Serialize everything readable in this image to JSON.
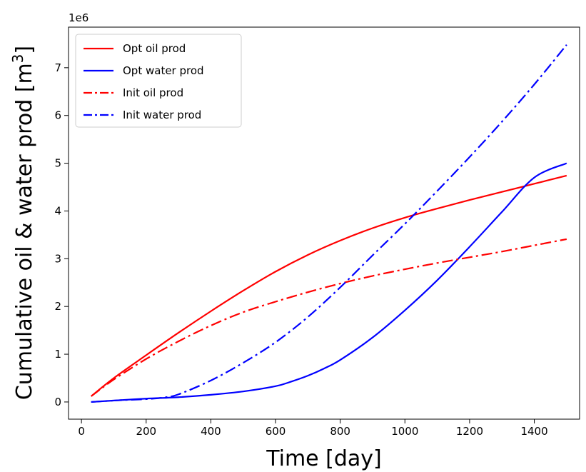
{
  "chart_data": {
    "type": "line",
    "xlabel": "Time [day]",
    "ylabel_main": "Cumulative oil & water prod [m",
    "ylabel_sup": "3",
    "ylabel_close": "]",
    "y_offset_label": "1e6",
    "xlim": [
      -40,
      1540
    ],
    "ylim": [
      -0.36,
      7.85
    ],
    "x_ticks": [
      0,
      200,
      400,
      600,
      800,
      1000,
      1200,
      1400
    ],
    "y_ticks": [
      0,
      1,
      2,
      3,
      4,
      5,
      6,
      7
    ],
    "grid": false,
    "legend_position": "upper-left",
    "series": [
      {
        "name": "Opt oil prod",
        "color": "#ff0000",
        "style": "solid",
        "x": [
          30,
          100,
          200,
          300,
          400,
          500,
          600,
          700,
          800,
          900,
          1000,
          1100,
          1200,
          1300,
          1400,
          1500
        ],
        "y": [
          0.12,
          0.5,
          0.98,
          1.45,
          1.9,
          2.33,
          2.73,
          3.08,
          3.38,
          3.64,
          3.86,
          4.05,
          4.23,
          4.4,
          4.57,
          4.74
        ]
      },
      {
        "name": "Opt water prod",
        "color": "#0000ff",
        "style": "solid",
        "x": [
          30,
          100,
          200,
          300,
          400,
          500,
          600,
          650,
          700,
          750,
          800,
          900,
          1000,
          1100,
          1200,
          1300,
          1400,
          1500
        ],
        "y": [
          0.0,
          0.03,
          0.07,
          0.1,
          0.15,
          0.22,
          0.33,
          0.43,
          0.55,
          0.7,
          0.88,
          1.35,
          1.92,
          2.55,
          3.25,
          3.98,
          4.7,
          5.0
        ]
      },
      {
        "name": "Init oil prod",
        "color": "#ff0000",
        "style": "dashdot",
        "x": [
          30,
          100,
          200,
          300,
          400,
          500,
          600,
          700,
          800,
          900,
          1000,
          1100,
          1200,
          1300,
          1400,
          1500
        ],
        "y": [
          0.12,
          0.47,
          0.9,
          1.27,
          1.6,
          1.88,
          2.1,
          2.3,
          2.48,
          2.64,
          2.78,
          2.91,
          3.03,
          3.15,
          3.28,
          3.41
        ]
      },
      {
        "name": "Init water prod",
        "color": "#0000ff",
        "style": "dashdot",
        "x": [
          30,
          100,
          200,
          250,
          300,
          400,
          500,
          600,
          700,
          800,
          900,
          1000,
          1100,
          1200,
          1300,
          1400,
          1500
        ],
        "y": [
          0.0,
          0.03,
          0.06,
          0.09,
          0.16,
          0.45,
          0.82,
          1.25,
          1.78,
          2.4,
          3.07,
          3.73,
          4.42,
          5.13,
          5.87,
          6.65,
          7.48
        ]
      }
    ]
  }
}
